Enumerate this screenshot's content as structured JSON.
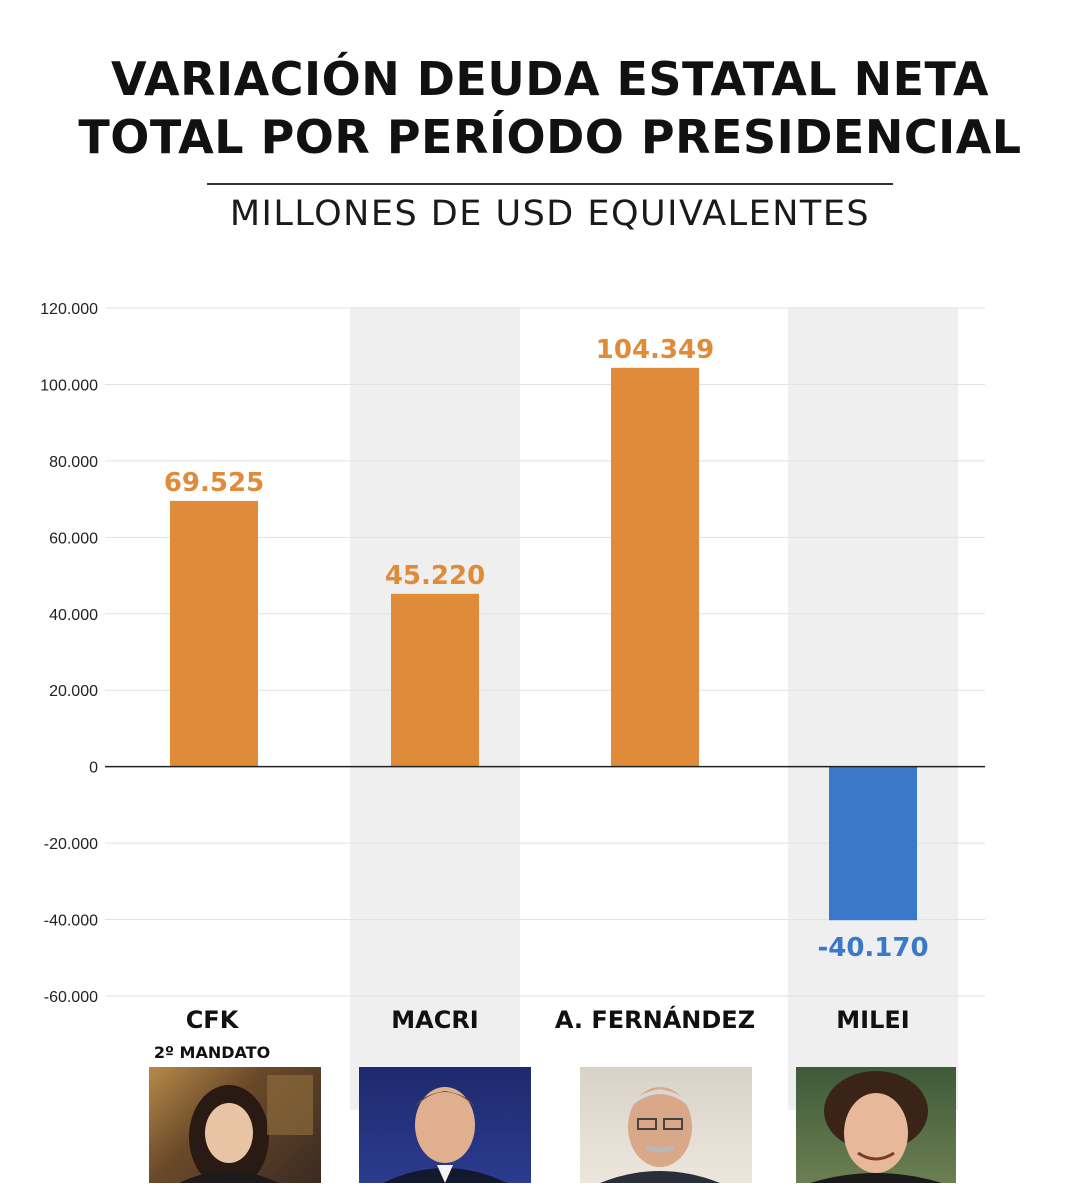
{
  "header": {
    "title_line1": "VARIACIÓN DEUDA ESTATAL NETA",
    "title_line2": "TOTAL POR PERÍODO PRESIDENCIAL",
    "subtitle": "MILLONES DE USD EQUIVALENTES"
  },
  "colors": {
    "positive_bar": "#E08B3A",
    "negative_bar": "#3A78C9",
    "column_shade": "#EFEFEF",
    "grid": "#E2E2E2",
    "zero_line": "#222222"
  },
  "chart_data": {
    "type": "bar",
    "title": "VARIACIÓN DEUDA ESTATAL NETA TOTAL POR PERÍODO PRESIDENCIAL",
    "subtitle": "MILLONES DE USD EQUIVALENTES",
    "categories": [
      "CFK",
      "MACRI",
      "A.  FERNÁNDEZ",
      "MILEI"
    ],
    "category_sublabels": [
      "2º MANDATO",
      "",
      "",
      ""
    ],
    "values": [
      69525,
      45220,
      104349,
      -40170
    ],
    "value_labels": [
      "69.525",
      "45.220",
      "104.349",
      "-40.170"
    ],
    "ylim": [
      -60000,
      120000
    ],
    "yticks": [
      120000,
      100000,
      80000,
      60000,
      40000,
      20000,
      0,
      -20000,
      -40000,
      -60000
    ],
    "ytick_labels": [
      "120.000",
      "100.000",
      "80.000",
      "60.000",
      "40.000",
      "20.000",
      "0",
      "-20.000",
      "-40.000",
      "-60.000"
    ],
    "grid": true,
    "shaded_columns": [
      "MACRI",
      "MILEI"
    ]
  },
  "photos": [
    {
      "name": "CFK",
      "icon": "portrait-woman"
    },
    {
      "name": "MACRI",
      "icon": "portrait-man"
    },
    {
      "name": "A.  FERNÁNDEZ",
      "icon": "portrait-man-glasses"
    },
    {
      "name": "MILEI",
      "icon": "portrait-man-curly"
    }
  ]
}
